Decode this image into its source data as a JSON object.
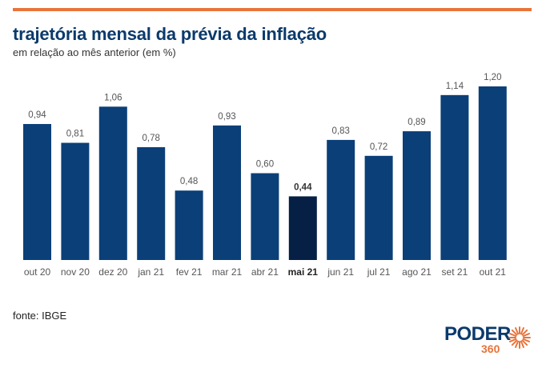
{
  "header": {
    "title": "trajetória mensal da prévia da inflação",
    "subtitle": "em relação ao mês anterior (em %)"
  },
  "footer": {
    "source": "fonte: IBGE"
  },
  "logo": {
    "word": "PODER",
    "number": "360"
  },
  "colors": {
    "accent": "#e8743b",
    "bar": "#0b3f78",
    "bar_highlight": "#061f45",
    "label": "#555555"
  },
  "chart_data": {
    "type": "bar",
    "categories": [
      "out 20",
      "nov 20",
      "dez 20",
      "jan 21",
      "fev 21",
      "mar 21",
      "abr 21",
      "mai 21",
      "jun 21",
      "jul 21",
      "ago 21",
      "set 21",
      "out 21"
    ],
    "values": [
      0.94,
      0.81,
      1.06,
      0.78,
      0.48,
      0.93,
      0.6,
      0.44,
      0.83,
      0.72,
      0.89,
      1.14,
      1.2
    ],
    "value_labels": [
      "0,94",
      "0,81",
      "1,06",
      "0,78",
      "0,48",
      "0,93",
      "0,60",
      "0,44",
      "0,83",
      "0,72",
      "0,89",
      "1,14",
      "1,20"
    ],
    "highlight": "mai 21",
    "ylim": [
      0,
      1.2
    ],
    "grid": false,
    "legend": "none"
  }
}
